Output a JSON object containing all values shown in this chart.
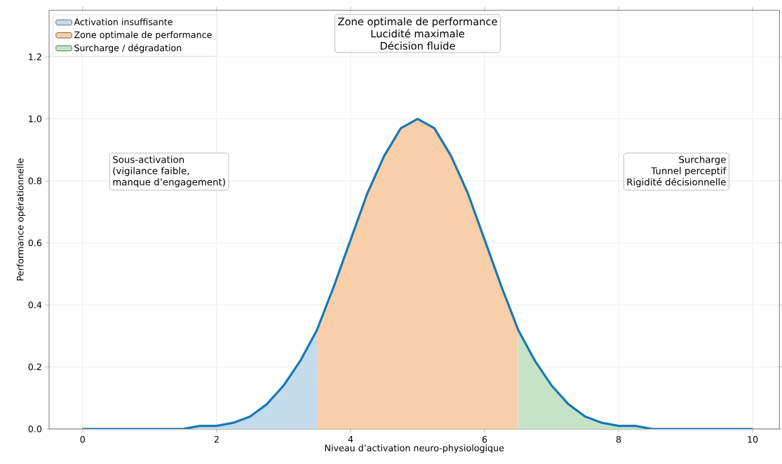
{
  "chart_data": {
    "type": "line",
    "xlabel": "Niveau d’activation neuro-physiologique",
    "ylabel": "Performance opérationnelle",
    "xlim": [
      -0.5,
      10.4
    ],
    "ylim": [
      0,
      1.35
    ],
    "xticks": [
      0,
      2,
      4,
      6,
      8,
      10
    ],
    "yticks": [
      {
        "value": 0,
        "label": "0.0"
      },
      {
        "value": 0.2,
        "label": "0.2"
      },
      {
        "value": 0.4,
        "label": "0.4"
      },
      {
        "value": 0.6,
        "label": "0.6"
      },
      {
        "value": 0.8,
        "label": "0.8"
      },
      {
        "value": 1.0,
        "label": "1.0"
      },
      {
        "value": 1.2,
        "label": "1.2"
      }
    ],
    "grid": true,
    "legend": "top left",
    "series": [
      {
        "type": "area",
        "name": "Activation insuffisante",
        "color": "#c3dbeb",
        "x": [
          0,
          0.25,
          0.5,
          0.75,
          1,
          1.25,
          1.5,
          1.75,
          2,
          2.25,
          2.5,
          2.75,
          3,
          3.25,
          3.5
        ],
        "values": [
          0,
          0,
          0,
          0,
          0,
          0,
          0,
          0.01,
          0.01,
          0.02,
          0.04,
          0.08,
          0.14,
          0.22,
          0.32
        ]
      },
      {
        "type": "area",
        "name": "Zone optimale de performance",
        "color": "#f8cfa8",
        "x": [
          3.5,
          3.75,
          4,
          4.25,
          4.5,
          4.75,
          5,
          5.25,
          5.5,
          5.75,
          6,
          6.25,
          6.5
        ],
        "values": [
          0.32,
          0.46,
          0.61,
          0.76,
          0.88,
          0.97,
          1.0,
          0.97,
          0.88,
          0.76,
          0.61,
          0.46,
          0.32
        ]
      },
      {
        "type": "area",
        "name": "Surcharge / dégradation",
        "color": "#c5e3c7",
        "x": [
          6.5,
          6.75,
          7,
          7.25,
          7.5,
          7.75,
          8,
          8.25,
          8.5,
          8.75,
          9,
          9.25,
          9.5,
          9.75,
          10
        ],
        "values": [
          0.32,
          0.22,
          0.14,
          0.08,
          0.04,
          0.02,
          0.01,
          0.01,
          0,
          0,
          0,
          0,
          0,
          0,
          0
        ]
      },
      {
        "color": "#1a78b4",
        "x": [
          0,
          0.25,
          0.5,
          0.75,
          1,
          1.25,
          1.5,
          1.75,
          2,
          2.25,
          2.5,
          2.75,
          3,
          3.25,
          3.5,
          3.75,
          4,
          4.25,
          4.5,
          4.75,
          5,
          5.25,
          5.5,
          5.75,
          6,
          6.25,
          6.5,
          6.75,
          7,
          7.25,
          7.5,
          7.75,
          8,
          8.25,
          8.5,
          8.75,
          9,
          9.25,
          9.5,
          9.75,
          10
        ],
        "values": [
          0,
          0,
          0,
          0,
          0,
          0,
          0,
          0.01,
          0.01,
          0.02,
          0.04,
          0.08,
          0.14,
          0.22,
          0.32,
          0.46,
          0.61,
          0.76,
          0.88,
          0.97,
          1.0,
          0.97,
          0.88,
          0.76,
          0.61,
          0.46,
          0.32,
          0.22,
          0.14,
          0.08,
          0.04,
          0.02,
          0.01,
          0.01,
          0,
          0,
          0,
          0,
          0,
          0,
          0
        ]
      }
    ],
    "annotations": [
      "Zone optimale de performance",
      "Lucidité maximale",
      "Décision fluide",
      "Sous-activation",
      "(vigilance faible,",
      "manque d’engagement)",
      "Surcharge",
      "Tunnel perceptif",
      "Rigidité décisionnelle"
    ]
  }
}
